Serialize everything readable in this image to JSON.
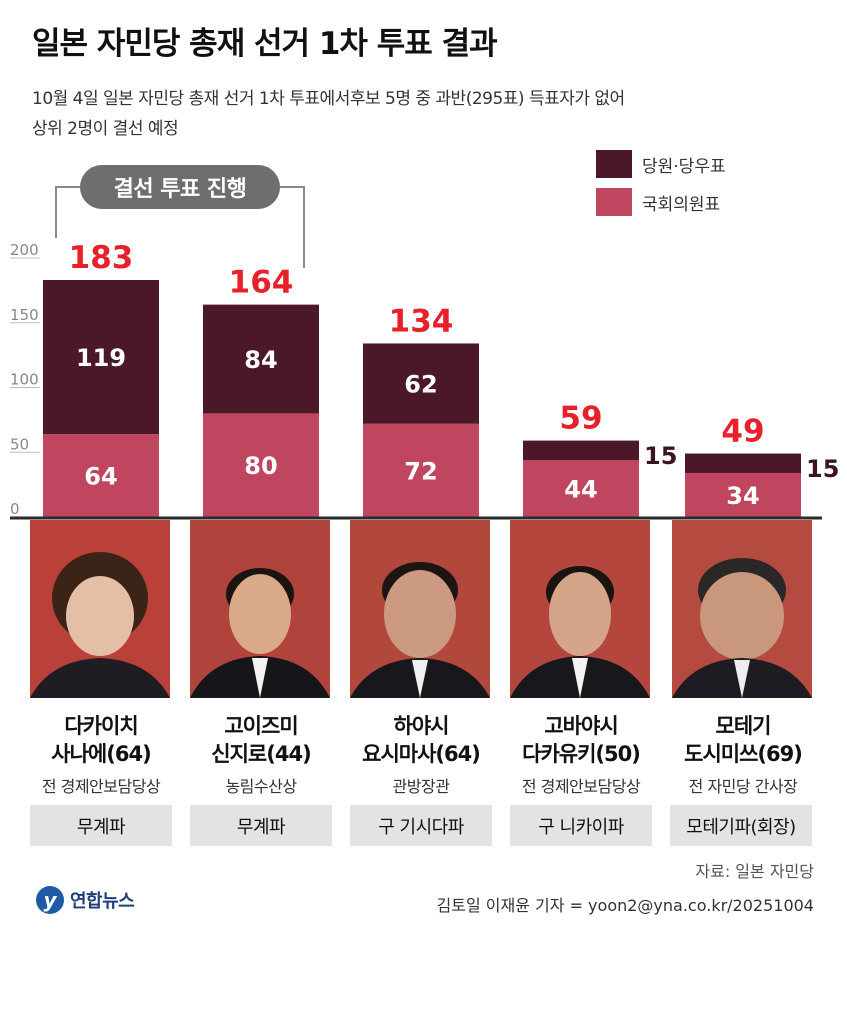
{
  "title": "일본 자민당 총재 선거 1차 투표 결과",
  "subtitle_line1": "10월 4일 일본 자민당 총재 선거 1차 투표에서후보 5명 중 과반(295표) 득표자가 없어",
  "subtitle_line2": "상위 2명이 결선 예정",
  "runoff_label": "결선 투표 진행",
  "source": "자료: 일본 자민당",
  "credit": "김토일 이재윤 기자 = yoon2@yna.co.kr/20251004",
  "logo_text": "연합뉴스",
  "candidates": [
    {
      "name_line1": "다카이치",
      "name_line2": "사나에(64)",
      "position": "전 경제안보담당상",
      "faction": "무계파"
    },
    {
      "name_line1": "고이즈미",
      "name_line2": "신지로(44)",
      "position": "농림수산상",
      "faction": "무계파"
    },
    {
      "name_line1": "하야시",
      "name_line2": "요시마사(64)",
      "position": "관방장관",
      "faction": "구 기시다파"
    },
    {
      "name_line1": "고바야시",
      "name_line2": "다카유키(50)",
      "position": "전 경제안보담당상",
      "faction": "구 니카이파"
    },
    {
      "name_line1": "모테기",
      "name_line2": "도시미쓰(69)",
      "position": "전 자민당 간사장",
      "faction": "모테기파(회장)"
    }
  ],
  "chart_data": {
    "type": "bar",
    "stacked": true,
    "categories": [
      "다카이치 사나에(64)",
      "고이즈미 신지로(44)",
      "하야시 요시마사(64)",
      "고바야시 다카유키(50)",
      "모테기 도시미쓰(69)"
    ],
    "series": [
      {
        "name": "국회의원표",
        "values": [
          64,
          80,
          72,
          44,
          34
        ],
        "color": "#c0465f"
      },
      {
        "name": "당원·당우표",
        "values": [
          119,
          84,
          62,
          15,
          15
        ],
        "color": "#4a1828"
      }
    ],
    "totals": [
      183,
      164,
      134,
      59,
      49
    ],
    "yticks": [
      0,
      50,
      100,
      150,
      200
    ],
    "ylim": [
      0,
      200
    ],
    "legend_position": "top-right",
    "total_label_color": "#e8202a"
  }
}
